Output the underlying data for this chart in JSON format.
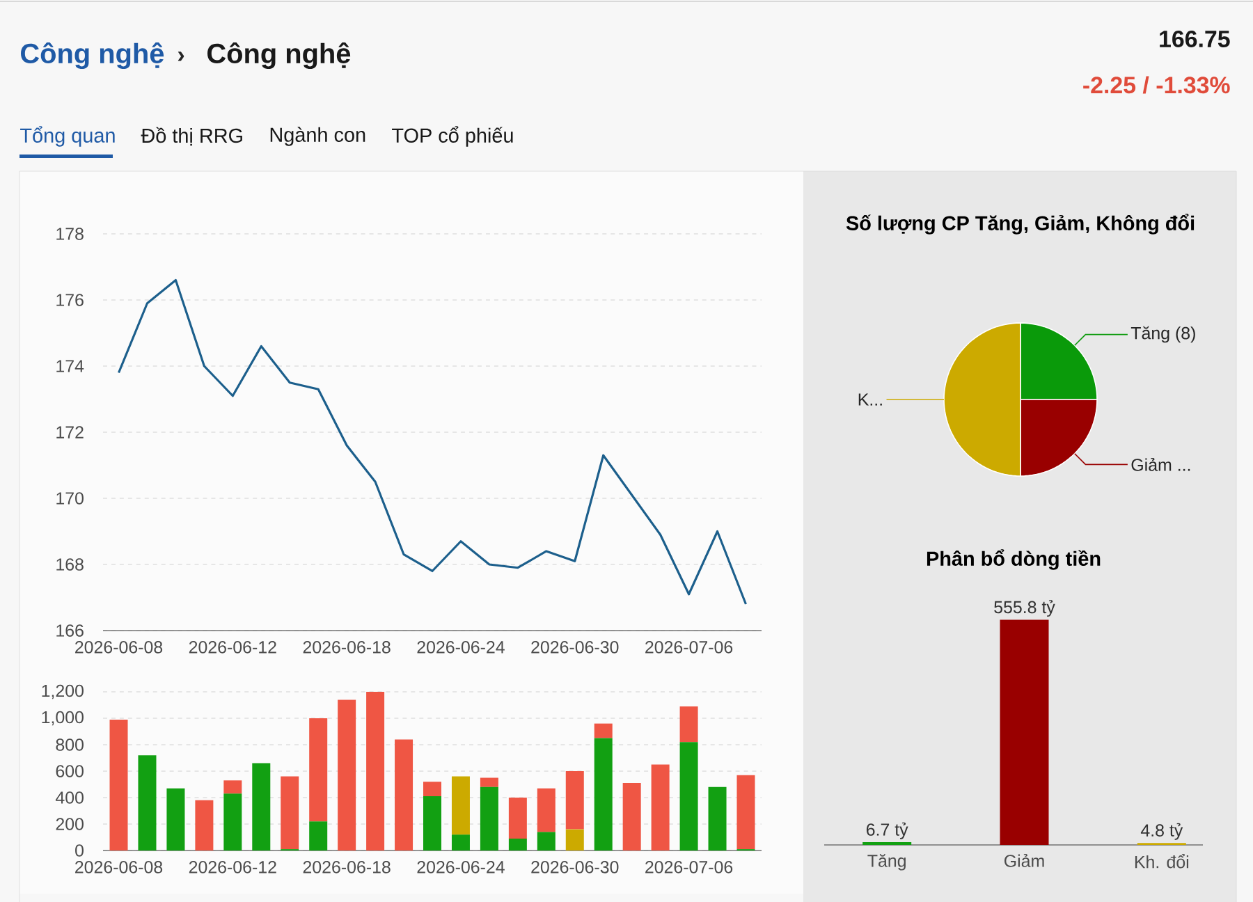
{
  "chart_data": [
    {
      "type": "other",
      "annotations": [
        "Công nghệ",
        "›",
        "Công nghệ",
        "166.75",
        "-2.25 / -1.33%",
        "Tổng quan",
        "Đồ thị RRG",
        "Ngành con",
        "TOP cổ phiếu"
      ]
    },
    {
      "type": "line",
      "categories": [
        "2026-06-08",
        null,
        null,
        null,
        "2026-06-12",
        null,
        null,
        null,
        "2026-06-18",
        null,
        null,
        null,
        "2026-06-24",
        null,
        null,
        null,
        "2026-06-30",
        null,
        null,
        null,
        "2026-07-06",
        null,
        null
      ],
      "series": [
        {
          "color": "#1c5f8c",
          "values": [
            173.8,
            175.9,
            176.6,
            174.0,
            173.1,
            174.6,
            173.5,
            173.3,
            171.6,
            170.5,
            168.3,
            167.8,
            168.7,
            168.0,
            167.9,
            168.4,
            168.1,
            171.3,
            170.1,
            168.9,
            167.1,
            169.0,
            166.8
          ]
        }
      ],
      "ylim": [
        166,
        178
      ],
      "yticks": [
        166,
        168,
        170,
        172,
        174,
        176,
        178
      ],
      "grid": "y"
    },
    {
      "type": "bar",
      "stacked": true,
      "categories": [
        "2026-06-08",
        null,
        null,
        null,
        "2026-06-12",
        null,
        null,
        null,
        "2026-06-18",
        null,
        null,
        null,
        "2026-06-24",
        null,
        null,
        null,
        "2026-06-30",
        null,
        null,
        null,
        "2026-07-06",
        null,
        null
      ],
      "series": [
        {
          "color": "#12a012",
          "values": [
            0,
            720,
            470,
            0,
            430,
            660,
            10,
            220,
            0,
            0,
            0,
            410,
            120,
            480,
            90,
            140,
            0,
            850,
            0,
            0,
            820,
            480,
            10
          ]
        },
        {
          "color": "#ccaa00",
          "values": [
            0,
            0,
            0,
            0,
            0,
            0,
            0,
            0,
            0,
            0,
            0,
            0,
            440,
            0,
            0,
            0,
            160,
            0,
            0,
            0,
            0,
            0,
            0
          ]
        },
        {
          "color": "#ef5644",
          "values": [
            990,
            0,
            0,
            380,
            100,
            0,
            550,
            780,
            1140,
            1200,
            840,
            110,
            0,
            70,
            310,
            330,
            440,
            110,
            510,
            650,
            270,
            0,
            560
          ]
        }
      ],
      "ylim": [
        0,
        1200
      ],
      "yticks": [
        0,
        200,
        400,
        600,
        800,
        {
          "value": 1000,
          "label": "1,000"
        },
        {
          "value": 1200,
          "label": "1,200"
        }
      ],
      "grid": "y"
    },
    {
      "type": "pie",
      "title": "Số lượng CP Tăng, Giảm, Không đổi",
      "categories": [
        "Tăng (8)",
        "Giảm ...",
        "K..."
      ],
      "values": [
        25,
        25,
        50
      ],
      "colors": [
        "#0a9a0a",
        "#990000",
        "#ccaa00"
      ]
    },
    {
      "type": "bar",
      "title": "Phân bổ dòng tiền",
      "categories": [
        "Tăng",
        "Giảm",
        "Kh. đổi"
      ],
      "values": [
        6.7,
        555.8,
        4.8
      ],
      "colors": [
        "#12a012",
        "#990000",
        "#ccaa00"
      ],
      "value_labels": [
        "6.7 tỷ",
        "555.8 tỷ",
        "4.8 tỷ"
      ]
    }
  ]
}
